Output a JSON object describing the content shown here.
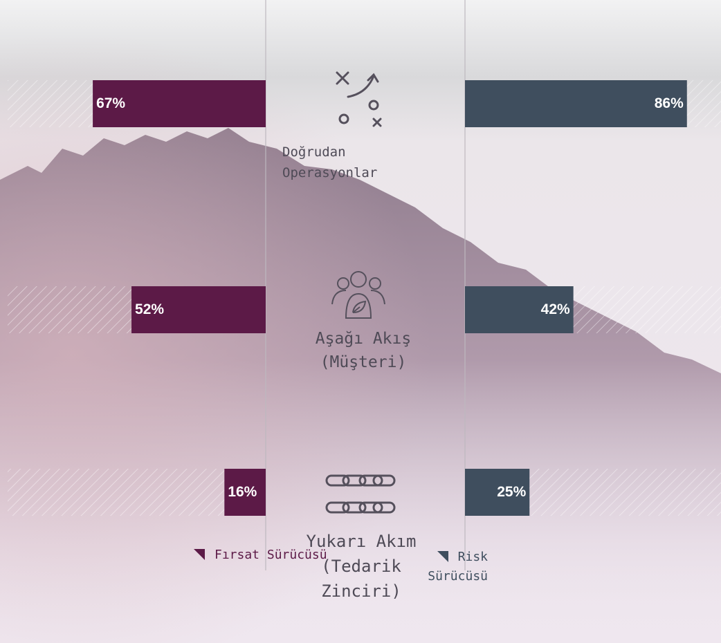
{
  "chart_data": {
    "type": "butterfly-bar",
    "categories": [
      "Doğrudan Operasyonlar",
      "Aşağı Akış (Müşteri)",
      "Yukarı Akım (Tedarik Zinciri)"
    ],
    "series": [
      {
        "name": "Fırsat Sürücüsü",
        "color": "#5c1a47",
        "values": [
          67,
          52,
          16
        ],
        "value_labels": [
          "67%",
          "52%",
          "16%"
        ]
      },
      {
        "name": "Risk Sürücüsü",
        "color": "#3f4e5e",
        "values": [
          86,
          42,
          25
        ],
        "value_labels": [
          "86%",
          "42%",
          "25%"
        ]
      }
    ],
    "xlim": [
      0,
      100
    ]
  }
}
